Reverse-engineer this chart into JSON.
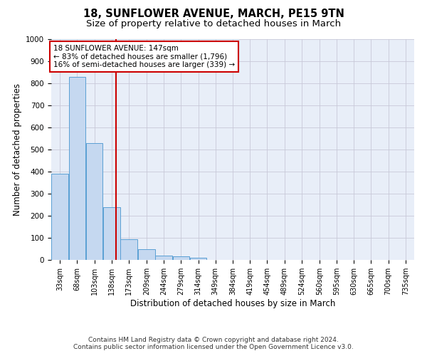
{
  "title1": "18, SUNFLOWER AVENUE, MARCH, PE15 9TN",
  "title2": "Size of property relative to detached houses in March",
  "xlabel": "Distribution of detached houses by size in March",
  "ylabel": "Number of detached properties",
  "bar_centers": [
    33,
    68,
    103,
    138,
    173,
    209,
    244,
    279,
    314,
    349,
    384,
    419,
    454,
    489,
    524,
    560,
    595,
    630,
    665,
    700,
    735
  ],
  "bar_heights": [
    390,
    830,
    530,
    240,
    95,
    50,
    20,
    15,
    10,
    0,
    0,
    0,
    0,
    0,
    0,
    0,
    0,
    0,
    0,
    0,
    0
  ],
  "bin_width": 35,
  "bar_color": "#c5d8f0",
  "bar_edge_color": "#5a9fd4",
  "tick_labels": [
    "33sqm",
    "68sqm",
    "103sqm",
    "138sqm",
    "173sqm",
    "209sqm",
    "244sqm",
    "279sqm",
    "314sqm",
    "349sqm",
    "384sqm",
    "419sqm",
    "454sqm",
    "489sqm",
    "524sqm",
    "560sqm",
    "595sqm",
    "630sqm",
    "665sqm",
    "700sqm",
    "735sqm"
  ],
  "vline_x": 147,
  "vline_color": "#cc0000",
  "ylim": [
    0,
    1000
  ],
  "yticks": [
    0,
    100,
    200,
    300,
    400,
    500,
    600,
    700,
    800,
    900,
    1000
  ],
  "annotation_text": "18 SUNFLOWER AVENUE: 147sqm\n← 83% of detached houses are smaller (1,796)\n16% of semi-detached houses are larger (339) →",
  "annotation_box_color": "#ffffff",
  "annotation_box_edge": "#cc0000",
  "footer1": "Contains HM Land Registry data © Crown copyright and database right 2024.",
  "footer2": "Contains public sector information licensed under the Open Government Licence v3.0.",
  "bg_color": "#e8eef8",
  "grid_color": "#c8c8d8",
  "title1_fontsize": 10.5,
  "title2_fontsize": 9.5,
  "axis_label_fontsize": 8.5,
  "tick_fontsize": 7,
  "ylabel_fontsize": 8.5,
  "footer_fontsize": 6.5
}
